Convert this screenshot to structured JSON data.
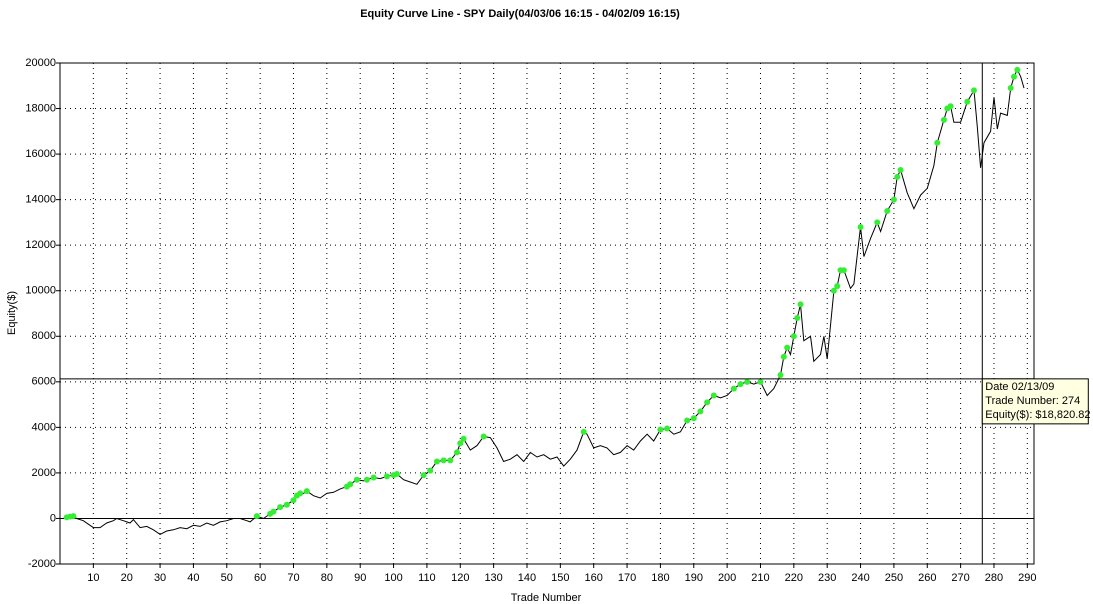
{
  "chart_data": {
    "type": "line",
    "title": "Equity Curve Line - SPY Daily(04/03/06 16:15 - 04/02/09 16:15)",
    "x_label": "Trade Number",
    "y_label": "Equity($)",
    "color": "#000000",
    "marker_color": "#33ee33",
    "grid": true,
    "xlim": [
      0,
      292
    ],
    "ylim": [
      -2000,
      20000
    ],
    "xticks": [
      10,
      20,
      30,
      40,
      50,
      60,
      70,
      80,
      90,
      100,
      110,
      120,
      130,
      140,
      150,
      160,
      170,
      180,
      190,
      200,
      210,
      220,
      230,
      240,
      250,
      260,
      270,
      280,
      290
    ],
    "yticks": [
      -2000,
      0,
      2000,
      4000,
      6000,
      8000,
      10000,
      12000,
      14000,
      16000,
      18000,
      20000
    ],
    "x": [
      1,
      2,
      3,
      4,
      5,
      7,
      9,
      10,
      12,
      14,
      16,
      17,
      19,
      21,
      22,
      24,
      26,
      28,
      30,
      32,
      34,
      36,
      38,
      40,
      42,
      44,
      46,
      48,
      50,
      52,
      54,
      56,
      57,
      59,
      60,
      61,
      63,
      64,
      66,
      68,
      70,
      71,
      72,
      73,
      74,
      76,
      78,
      80,
      82,
      84,
      86,
      87,
      89,
      91,
      92,
      94,
      96,
      98,
      100,
      101,
      103,
      105,
      107,
      109,
      111,
      113,
      115,
      117,
      119,
      120,
      121,
      123,
      125,
      127,
      129,
      131,
      133,
      135,
      137,
      139,
      141,
      143,
      145,
      147,
      149,
      151,
      153,
      155,
      157,
      158,
      160,
      162,
      164,
      166,
      168,
      170,
      172,
      174,
      176,
      178,
      180,
      182,
      184,
      186,
      188,
      190,
      192,
      194,
      196,
      198,
      200,
      202,
      204,
      206,
      208,
      210,
      212,
      214,
      216,
      217,
      218,
      219,
      220,
      221,
      222,
      223,
      225,
      226,
      228,
      229,
      230,
      232,
      233,
      234,
      235,
      237,
      238,
      240,
      241,
      243,
      245,
      246,
      248,
      250,
      251,
      252,
      254,
      256,
      258,
      260,
      262,
      263,
      265,
      266,
      267,
      268,
      270,
      272,
      274,
      275,
      276,
      277,
      279,
      280,
      281,
      282,
      284,
      285,
      286,
      287,
      288,
      289
    ],
    "values": [
      0,
      50,
      80,
      100,
      0,
      -100,
      -300,
      -400,
      -400,
      -200,
      -100,
      0,
      -100,
      -200,
      -50,
      -400,
      -350,
      -500,
      -700,
      -550,
      -500,
      -400,
      -450,
      -300,
      -350,
      -200,
      -300,
      -150,
      -100,
      0,
      0,
      -100,
      -150,
      100,
      50,
      0,
      200,
      300,
      500,
      600,
      800,
      1000,
      1100,
      1100,
      1200,
      1000,
      900,
      1100,
      1150,
      1300,
      1400,
      1500,
      1700,
      1650,
      1700,
      1800,
      1750,
      1850,
      1900,
      1950,
      1700,
      1600,
      1500,
      1900,
      2100,
      2500,
      2550,
      2550,
      2900,
      3300,
      3500,
      3000,
      3200,
      3600,
      3550,
      3100,
      2500,
      2600,
      2800,
      2500,
      2900,
      2700,
      2800,
      2600,
      2700,
      2300,
      2600,
      3000,
      3800,
      3700,
      3100,
      3200,
      3100,
      2800,
      2900,
      3200,
      3000,
      3400,
      3700,
      3400,
      3900,
      3950,
      3700,
      3800,
      4300,
      4400,
      4700,
      5100,
      5400,
      5300,
      5400,
      5700,
      5900,
      6000,
      5900,
      6000,
      5400,
      5700,
      6300,
      7100,
      7500,
      7200,
      8000,
      8800,
      9400,
      7800,
      8000,
      6900,
      7200,
      8000,
      7000,
      10000,
      10200,
      10900,
      10900,
      10100,
      10300,
      12800,
      11500,
      12300,
      13000,
      12600,
      13500,
      14000,
      15000,
      15300,
      14300,
      13600,
      14200,
      14500,
      15500,
      16500,
      17500,
      18000,
      18100,
      17400,
      17400,
      18300,
      18800,
      17200,
      15400,
      16500,
      17000,
      18500,
      17100,
      17800,
      17700,
      18900,
      19400,
      19700,
      19400,
      18900
    ],
    "markers": {
      "x": [
        2,
        3,
        4,
        59,
        63,
        64,
        66,
        68,
        70,
        71,
        72,
        74,
        86,
        87,
        89,
        92,
        94,
        98,
        100,
        101,
        109,
        111,
        113,
        115,
        117,
        119,
        120,
        121,
        127,
        157,
        180,
        182,
        188,
        190,
        192,
        194,
        196,
        202,
        204,
        206,
        210,
        216,
        217,
        218,
        220,
        221,
        222,
        232,
        233,
        234,
        235,
        240,
        245,
        248,
        250,
        251,
        252,
        263,
        265,
        266,
        267,
        272,
        274,
        285,
        286,
        287
      ],
      "values": [
        50,
        80,
        100,
        100,
        200,
        300,
        500,
        600,
        800,
        1000,
        1100,
        1200,
        1400,
        1500,
        1700,
        1700,
        1800,
        1850,
        1900,
        1950,
        1900,
        2100,
        2500,
        2550,
        2550,
        2900,
        3300,
        3500,
        3600,
        3800,
        3900,
        3950,
        4300,
        4400,
        4700,
        5100,
        5400,
        5700,
        5900,
        6000,
        6000,
        6300,
        7100,
        7500,
        8000,
        8800,
        9400,
        10000,
        10200,
        10900,
        10900,
        12800,
        13000,
        13500,
        14000,
        15000,
        15300,
        16500,
        17500,
        18000,
        18100,
        18300,
        18800,
        18900,
        19400,
        19700
      ]
    },
    "cursor": {
      "x": 276.5,
      "y": 6130
    },
    "tooltip": [
      "Date 02/13/09",
      "Trade Number: 274",
      "Equity($): $18,820.82"
    ]
  }
}
